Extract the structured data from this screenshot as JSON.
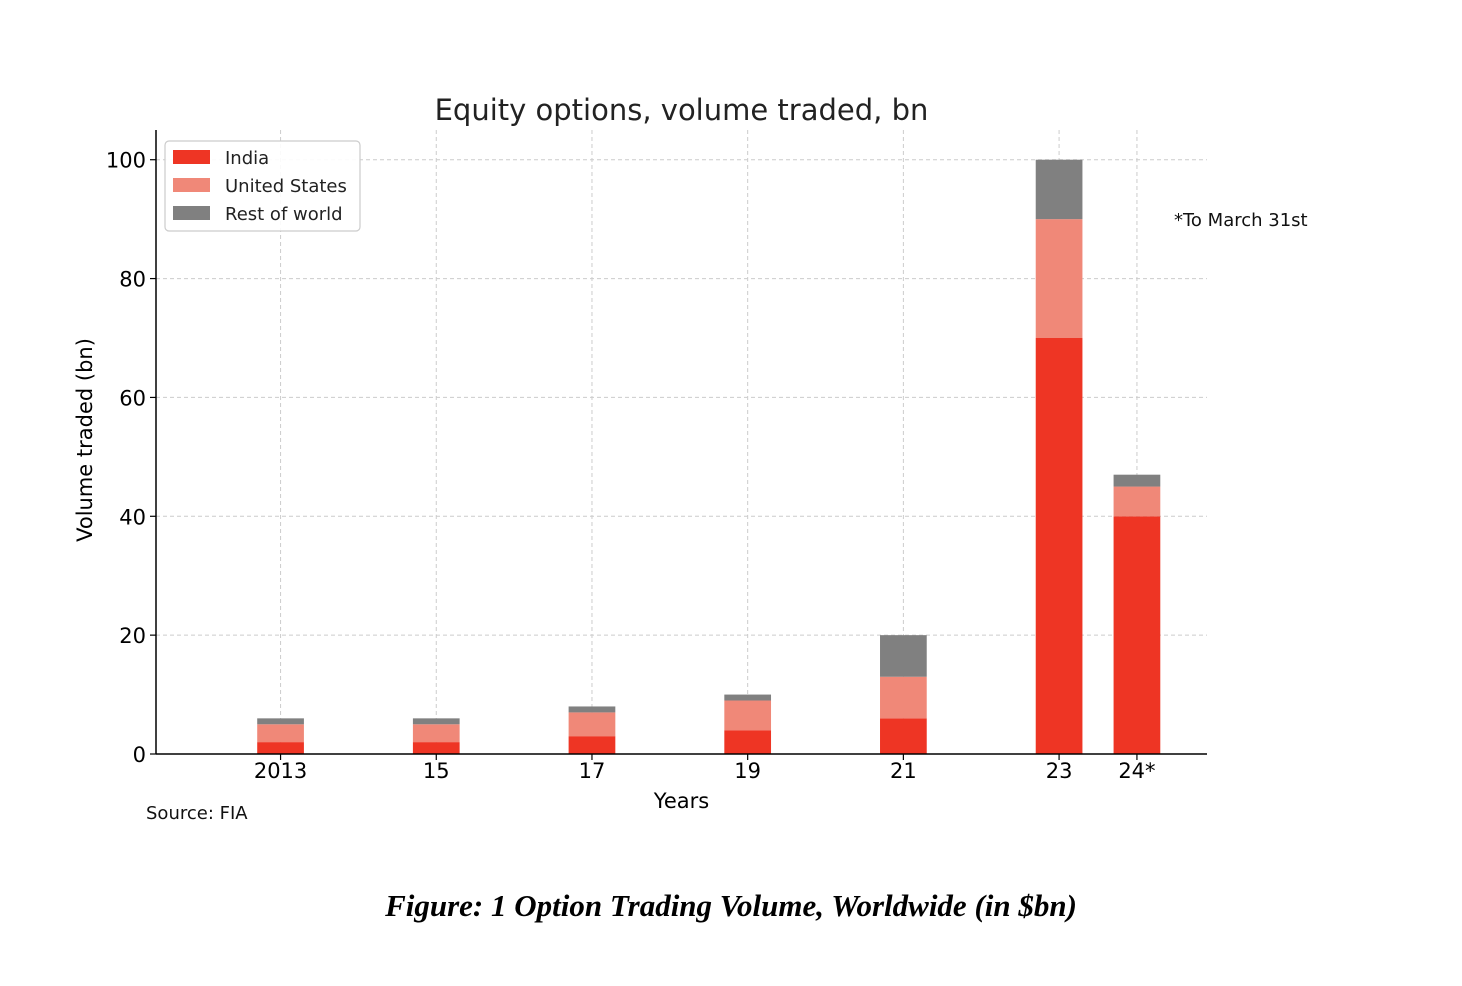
{
  "chart_data": {
    "type": "bar",
    "stacked": true,
    "title": "Equity options, volume traded, bn",
    "xlabel": "Years",
    "ylabel": "Volume traded (bn)",
    "categories": [
      "2013",
      "15",
      "17",
      "19",
      "21",
      "23",
      "24*"
    ],
    "x": [
      2013,
      2015,
      2017,
      2019,
      2021,
      2023,
      2024
    ],
    "series": [
      {
        "name": "India",
        "color": "#ee3524",
        "values": [
          2,
          2,
          3,
          4,
          6,
          70,
          40
        ]
      },
      {
        "name": "United States",
        "color": "#f08878",
        "values": [
          3,
          3,
          4,
          5,
          7,
          20,
          5
        ]
      },
      {
        "name": "Rest of world",
        "color": "#808080",
        "values": [
          1,
          1,
          1,
          1,
          7,
          10,
          2
        ]
      }
    ],
    "ylim": [
      0,
      105
    ],
    "yticks": [
      0,
      20,
      40,
      60,
      80,
      100
    ],
    "xlim": [
      2011.4,
      2024.9
    ],
    "grid": true,
    "legend_position": "top-left",
    "annotation": "*To March 31st",
    "source": "Source: FIA"
  },
  "caption": "Figure: 1 Option Trading Volume, Worldwide (in $bn)"
}
